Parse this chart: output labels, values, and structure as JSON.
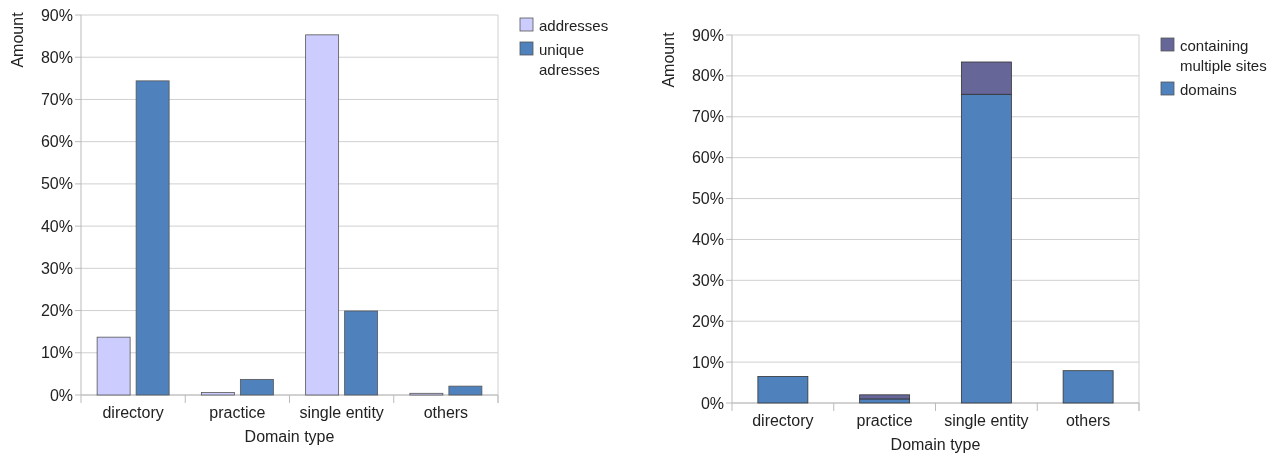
{
  "chart_data": [
    {
      "type": "bar",
      "categories": [
        "directory",
        "practice",
        "single entity",
        "others"
      ],
      "xlabel": "Domain type",
      "ylabel": "Amount",
      "series": [
        {
          "name": "addresses",
          "color": "#ccccff",
          "values": [
            13.7,
            0.6,
            85.3,
            0.4
          ]
        },
        {
          "name": "unique adresses",
          "color": "#4f81bd",
          "values": [
            74.4,
            3.7,
            19.9,
            2.1
          ]
        }
      ],
      "ylim": [
        0,
        90
      ],
      "yticks": [
        {
          "value": 0,
          "label": "0%"
        },
        {
          "value": 10,
          "label": "10%"
        },
        {
          "value": 20,
          "label": "20%"
        },
        {
          "value": 30,
          "label": "30%"
        },
        {
          "value": 40,
          "label": "40%"
        },
        {
          "value": 50,
          "label": "50%"
        },
        {
          "value": 60,
          "label": "60%"
        },
        {
          "value": 70,
          "label": "70%"
        },
        {
          "value": 80,
          "label": "80%"
        },
        {
          "value": 90,
          "label": "90%"
        }
      ],
      "grid": "y",
      "legend": "right"
    },
    {
      "type": "bar",
      "stacked": true,
      "categories": [
        "directory",
        "practice",
        "single entity",
        "others"
      ],
      "xlabel": "Domain type",
      "ylabel": "Amount",
      "series": [
        {
          "name": "domains",
          "color": "#4f81bd",
          "values": [
            6.5,
            1.0,
            75.5,
            7.9
          ]
        },
        {
          "name": "containing multiple sites",
          "color": "#666699",
          "values": [
            0,
            1.0,
            7.9,
            0
          ]
        }
      ],
      "ylim": [
        0,
        90
      ],
      "yticks": [
        {
          "value": 0,
          "label": "0%"
        },
        {
          "value": 10,
          "label": "10%"
        },
        {
          "value": 20,
          "label": "20%"
        },
        {
          "value": 30,
          "label": "30%"
        },
        {
          "value": 40,
          "label": "40%"
        },
        {
          "value": 50,
          "label": "50%"
        },
        {
          "value": 60,
          "label": "60%"
        },
        {
          "value": 70,
          "label": "70%"
        },
        {
          "value": 80,
          "label": "80%"
        },
        {
          "value": 90,
          "label": "90%"
        }
      ],
      "grid": "y",
      "legend": "right"
    }
  ]
}
